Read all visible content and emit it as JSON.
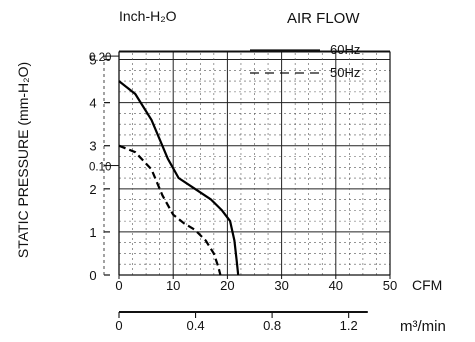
{
  "chart_data": {
    "type": "line",
    "title": "AIR FLOW",
    "ylabel": "STATIC PRESSURE (mm-H₂O)",
    "y2label": "Inch-H₂O",
    "xlabel": "CFM",
    "x2label": "m³/min",
    "xlim": [
      0,
      50
    ],
    "ylim": [
      0,
      5.5
    ],
    "x_ticks": [
      "0",
      "10",
      "20",
      "30",
      "40",
      "50"
    ],
    "y_ticks": [
      "0",
      "1",
      "2",
      "3",
      "4",
      "5"
    ],
    "x2_ticks": [
      "0",
      "0.4",
      "0.8",
      "1.2"
    ],
    "y2_ticks": [
      "0.10",
      "0.20"
    ],
    "grid": true,
    "legend_position": "top-right",
    "series": [
      {
        "name": "60Hz",
        "style": "solid",
        "x": [
          0,
          3,
          6,
          9,
          11,
          14,
          17,
          19,
          20.5,
          21.3,
          21.7,
          22.0
        ],
        "y": [
          4.5,
          4.2,
          3.6,
          2.7,
          2.25,
          2.0,
          1.75,
          1.5,
          1.25,
          0.8,
          0.35,
          0.0
        ]
      },
      {
        "name": "50Hz",
        "style": "dashed",
        "x": [
          0,
          3,
          6,
          8,
          10,
          12,
          14,
          16,
          17.5,
          18.3,
          18.7
        ],
        "y": [
          3.0,
          2.85,
          2.45,
          1.85,
          1.4,
          1.2,
          1.05,
          0.8,
          0.5,
          0.2,
          0.0
        ]
      }
    ]
  }
}
